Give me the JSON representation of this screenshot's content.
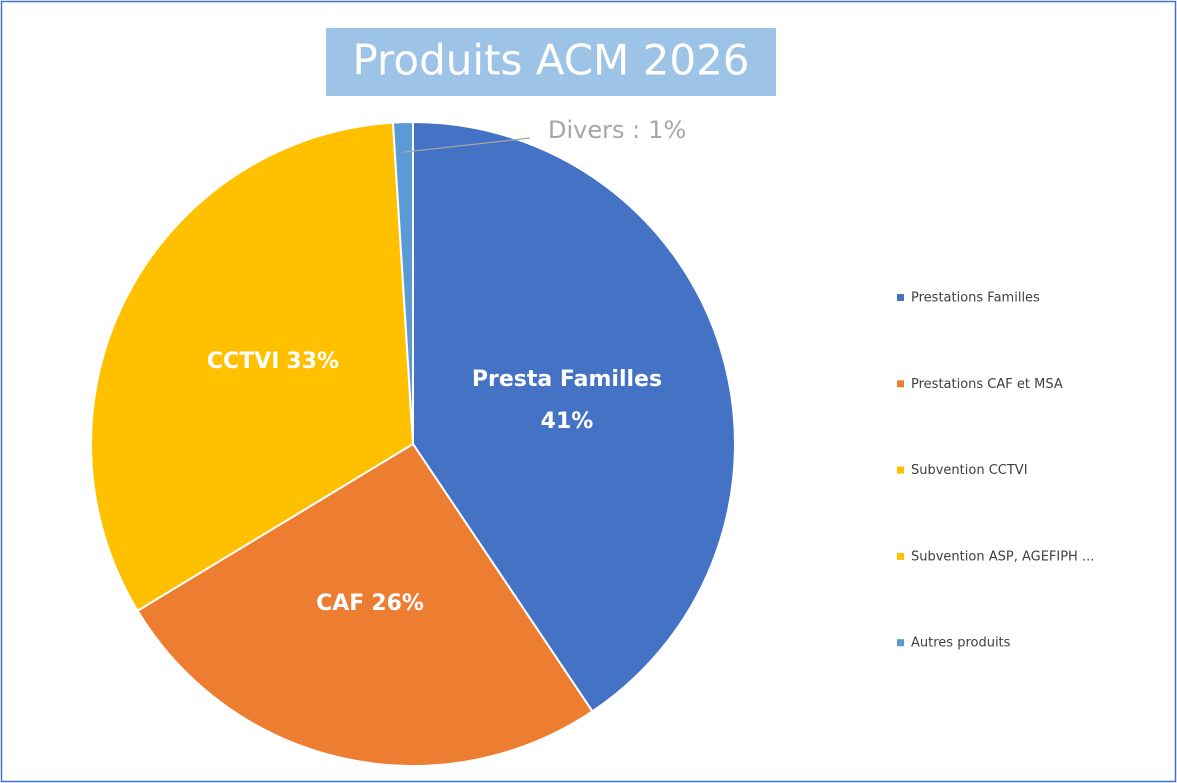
{
  "chart_data": {
    "type": "pie",
    "title": "Produits ACM 2026",
    "categories": [
      "Prestations Familles",
      "Prestations CAF et MSA",
      "Subvention CCTVI",
      "Subvention ASP, AGEFIPH ...",
      "Autres produits"
    ],
    "values": [
      41,
      26,
      33,
      0,
      1
    ],
    "label_names": [
      "Presta Familles",
      "CAF",
      "CCTVI",
      null,
      "Divers :"
    ],
    "value_labels": [
      "41%",
      "26%",
      "33%",
      null,
      "1%"
    ],
    "colors": [
      "#4472c4",
      "#ed7d31",
      "#ffc000",
      "#ffc000",
      "#5b9bd5"
    ],
    "legend": "right"
  }
}
